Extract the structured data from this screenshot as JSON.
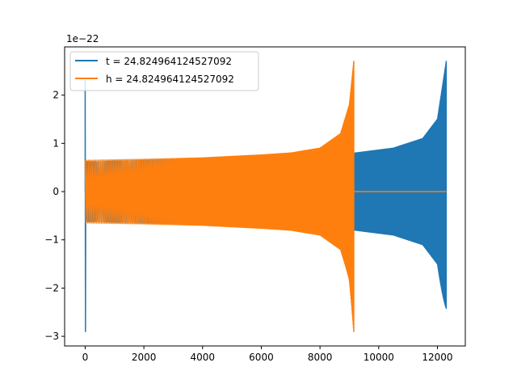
{
  "chart_data": {
    "type": "line",
    "title": "",
    "xlabel": "",
    "ylabel": "",
    "y_offset_label": "1e−22",
    "xlim": [
      -700,
      12950
    ],
    "ylim": [
      -3.2,
      3.0
    ],
    "x_ticks": [
      0,
      2000,
      4000,
      6000,
      8000,
      10000,
      12000
    ],
    "x_tick_labels": [
      "0",
      "2000",
      "4000",
      "6000",
      "8000",
      "10000",
      "12000"
    ],
    "y_ticks": [
      -3,
      -2,
      -1,
      0,
      1,
      2
    ],
    "y_tick_labels": [
      "−3",
      "−2",
      "−1",
      "0",
      "1",
      "2"
    ],
    "grid": false,
    "legend_position": "top-left",
    "series": [
      {
        "name": "t = 24.824964124527092",
        "color": "#1f77b4",
        "description_points": {
          "spike_at_start": {
            "x": 0,
            "y_max": 2.3,
            "y_min": -2.9
          },
          "envelope": [
            [
              200,
              0.62
            ],
            [
              2000,
              0.65
            ],
            [
              4000,
              0.66
            ],
            [
              6000,
              0.7
            ],
            [
              8000,
              0.75
            ],
            [
              9200,
              0.8
            ],
            [
              10500,
              0.9
            ],
            [
              11500,
              1.1
            ],
            [
              12000,
              1.5
            ],
            [
              12300,
              2.7
            ]
          ],
          "envelope_min_end": -2.42,
          "x_end": 12300
        }
      },
      {
        "name": "h = 24.824964124527092",
        "color": "#ff7f0e",
        "description_points": {
          "envelope": [
            [
              0,
              0.65
            ],
            [
              2000,
              0.67
            ],
            [
              4000,
              0.7
            ],
            [
              6000,
              0.76
            ],
            [
              7000,
              0.8
            ],
            [
              8000,
              0.9
            ],
            [
              8700,
              1.2
            ],
            [
              9000,
              1.8
            ],
            [
              9150,
              2.7
            ]
          ],
          "envelope_min_end": -2.9,
          "x_end": 9150,
          "flat_after": {
            "x_start": 9150,
            "x_end": 12300,
            "y": 0
          }
        }
      }
    ]
  }
}
